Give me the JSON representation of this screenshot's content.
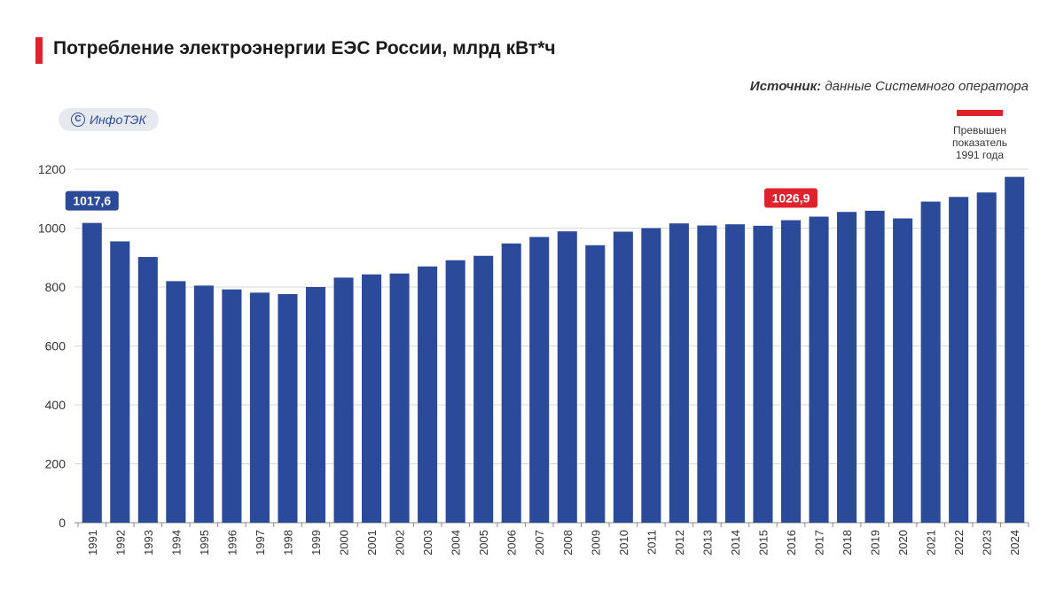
{
  "header": {
    "title": "Потребление электроэнергии ЕЭС России, млрд кВт*ч",
    "source_label": "Источник:",
    "source_text": "данные Системного оператора",
    "logo_text": "ИнфоТЭК"
  },
  "legend": {
    "text": "Превышен показатель 1991 года",
    "color": "#e0222d"
  },
  "colors": {
    "bar": "#2c4a9a",
    "accent": "#e0222d",
    "grid": "#d9d9d9"
  },
  "chart_data": {
    "type": "bar",
    "title": "Потребление электроэнергии ЕЭС России, млрд кВт*ч",
    "xlabel": "",
    "ylabel": "",
    "ylim": [
      0,
      1200
    ],
    "yticks": [
      0,
      200,
      400,
      600,
      800,
      1000,
      1200
    ],
    "grid": true,
    "categories": [
      "1991",
      "1992",
      "1993",
      "1994",
      "1995",
      "1996",
      "1997",
      "1998",
      "1999",
      "2000",
      "2001",
      "2002",
      "2003",
      "2004",
      "2005",
      "2006",
      "2007",
      "2008",
      "2009",
      "2010",
      "2011",
      "2012",
      "2013",
      "2014",
      "2015",
      "2016",
      "2017",
      "2018",
      "2019",
      "2020",
      "2021",
      "2022",
      "2023",
      "2024"
    ],
    "values": [
      1017.6,
      955,
      902,
      820,
      805,
      792,
      781,
      776,
      800,
      832,
      843,
      846,
      870,
      891,
      906,
      948,
      970,
      989,
      942,
      988,
      1000,
      1016,
      1009,
      1013,
      1008,
      1026.9,
      1039,
      1055,
      1059,
      1033,
      1090,
      1106,
      1121,
      1174
    ],
    "annotations": [
      {
        "category": "1991",
        "text": "1017,6",
        "color": "#2c4a9a"
      },
      {
        "category": "2016",
        "text": "1026,9",
        "color": "#e0222d"
      }
    ]
  }
}
